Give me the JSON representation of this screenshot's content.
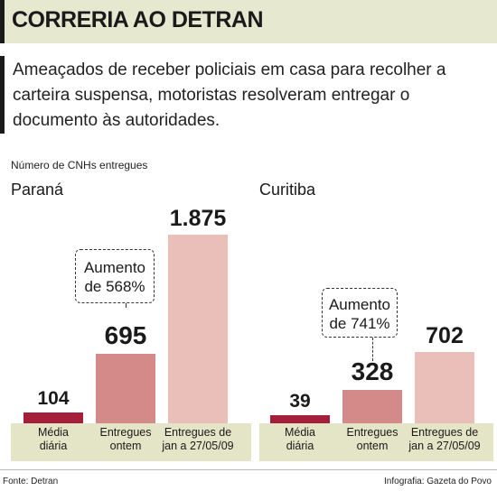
{
  "header": {
    "title": "CORRERIA AO DETRAN"
  },
  "intro": "Ameaçados de receber policiais em casa para recolher a carteira suspensa, motoristas resolveram entregar o documento às autoridades.",
  "units_label": "Número de CNHs entregues",
  "colors": {
    "dark_red": "#a51f3b",
    "mid_rose": "#d48a89",
    "light_pink": "#ebbfb9",
    "header_bg": "#e6e8cf",
    "category_bg": "#e4e5c6"
  },
  "chart_data": [
    {
      "type": "bar",
      "title": "Paraná",
      "categories": [
        [
          "Média",
          "diária"
        ],
        [
          "Entregues",
          "ontem"
        ],
        [
          "Entregues de",
          "jan a 27/05/09"
        ]
      ],
      "values": [
        104,
        695,
        1875
      ],
      "value_labels": [
        "104",
        "695",
        "1.875"
      ],
      "callout": [
        "Aumento",
        "de 568%"
      ]
    },
    {
      "type": "bar",
      "title": "Curitiba",
      "categories": [
        [
          "Média",
          "diária"
        ],
        [
          "Entregues",
          "ontem"
        ],
        [
          "Entregues de",
          "jan a 27/05/09"
        ]
      ],
      "values": [
        39,
        328,
        702
      ],
      "value_labels": [
        "39",
        "328",
        "702"
      ],
      "callout": [
        "Aumento",
        "de 741%"
      ]
    }
  ],
  "footer": {
    "source": "Fonte: Detran",
    "credit": "Infografia: Gazeta do Povo"
  }
}
